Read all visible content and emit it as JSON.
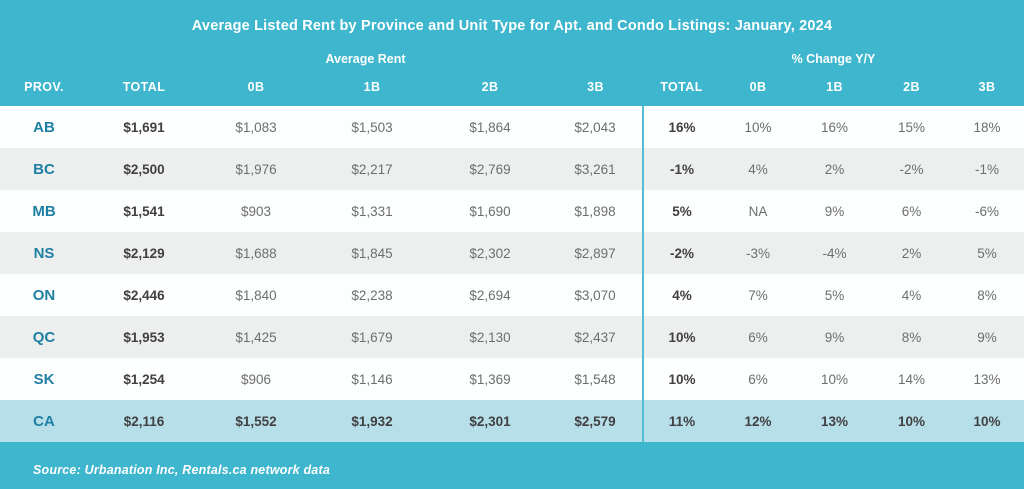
{
  "title": "Average Listed Rent by Province and Unit Type for Apt. and Condo Listings: January, 2024",
  "groups": {
    "rent": "Average Rent",
    "change": "% Change Y/Y"
  },
  "columns": [
    "PROV.",
    "TOTAL",
    "0B",
    "1B",
    "2B",
    "3B",
    "TOTAL",
    "0B",
    "1B",
    "2B",
    "3B"
  ],
  "rows": [
    {
      "prov": "AB",
      "rent": [
        "$1,691",
        "$1,083",
        "$1,503",
        "$1,864",
        "$2,043"
      ],
      "change": [
        "16%",
        "10%",
        "16%",
        "15%",
        "18%"
      ]
    },
    {
      "prov": "BC",
      "rent": [
        "$2,500",
        "$1,976",
        "$2,217",
        "$2,769",
        "$3,261"
      ],
      "change": [
        "-1%",
        "4%",
        "2%",
        "-2%",
        "-1%"
      ]
    },
    {
      "prov": "MB",
      "rent": [
        "$1,541",
        "$903",
        "$1,331",
        "$1,690",
        "$1,898"
      ],
      "change": [
        "5%",
        "NA",
        "9%",
        "6%",
        "-6%"
      ]
    },
    {
      "prov": "NS",
      "rent": [
        "$2,129",
        "$1,688",
        "$1,845",
        "$2,302",
        "$2,897"
      ],
      "change": [
        "-2%",
        "-3%",
        "-4%",
        "2%",
        "5%"
      ]
    },
    {
      "prov": "ON",
      "rent": [
        "$2,446",
        "$1,840",
        "$2,238",
        "$2,694",
        "$3,070"
      ],
      "change": [
        "4%",
        "7%",
        "5%",
        "4%",
        "8%"
      ]
    },
    {
      "prov": "QC",
      "rent": [
        "$1,953",
        "$1,425",
        "$1,679",
        "$2,130",
        "$2,437"
      ],
      "change": [
        "10%",
        "6%",
        "9%",
        "8%",
        "9%"
      ]
    },
    {
      "prov": "SK",
      "rent": [
        "$1,254",
        "$906",
        "$1,146",
        "$1,369",
        "$1,548"
      ],
      "change": [
        "10%",
        "6%",
        "10%",
        "14%",
        "13%"
      ]
    },
    {
      "prov": "CA",
      "rent": [
        "$2,116",
        "$1,552",
        "$1,932",
        "$2,301",
        "$2,579"
      ],
      "change": [
        "11%",
        "12%",
        "13%",
        "10%",
        "10%"
      ]
    }
  ],
  "footer": {
    "source": "Source: Urbanation Inc, Rentals.ca network data"
  },
  "colors": {
    "header_bg": "#3db6ce",
    "footer_bg": "#3db6ce",
    "row_alt_bg": "#edefef",
    "highlight_row_bg": "#b7dfe9",
    "province_text": "#1f80a3",
    "bold_value_text": "#414042",
    "value_text": "#6d6e71",
    "divider_line": "#54bdd3"
  },
  "chart_data": {
    "type": "table",
    "title": "Average Listed Rent by Province and Unit Type for Apt. and Condo Listings: January, 2024",
    "column_groups": [
      "Average Rent",
      "% Change Y/Y"
    ],
    "columns": [
      "PROV.",
      "TOTAL",
      "0B",
      "1B",
      "2B",
      "3B",
      "TOTAL",
      "0B",
      "1B",
      "2B",
      "3B"
    ],
    "rows": [
      [
        "AB",
        1691,
        1083,
        1503,
        1864,
        2043,
        "16%",
        "10%",
        "16%",
        "15%",
        "18%"
      ],
      [
        "BC",
        2500,
        1976,
        2217,
        2769,
        3261,
        "-1%",
        "4%",
        "2%",
        "-2%",
        "-1%"
      ],
      [
        "MB",
        1541,
        903,
        1331,
        1690,
        1898,
        "5%",
        "NA",
        "9%",
        "6%",
        "-6%"
      ],
      [
        "NS",
        2129,
        1688,
        1845,
        2302,
        2897,
        "-2%",
        "-3%",
        "-4%",
        "2%",
        "5%"
      ],
      [
        "ON",
        2446,
        1840,
        2238,
        2694,
        3070,
        "4%",
        "7%",
        "5%",
        "4%",
        "8%"
      ],
      [
        "QC",
        1953,
        1425,
        1679,
        2130,
        2437,
        "10%",
        "6%",
        "9%",
        "8%",
        "9%"
      ],
      [
        "SK",
        1254,
        906,
        1146,
        1369,
        1548,
        "10%",
        "6%",
        "10%",
        "14%",
        "13%"
      ],
      [
        "CA",
        2116,
        1552,
        1932,
        2301,
        2579,
        "11%",
        "12%",
        "13%",
        "10%",
        "10%"
      ]
    ],
    "source": "Source: Urbanation Inc, Rentals.ca network data"
  }
}
